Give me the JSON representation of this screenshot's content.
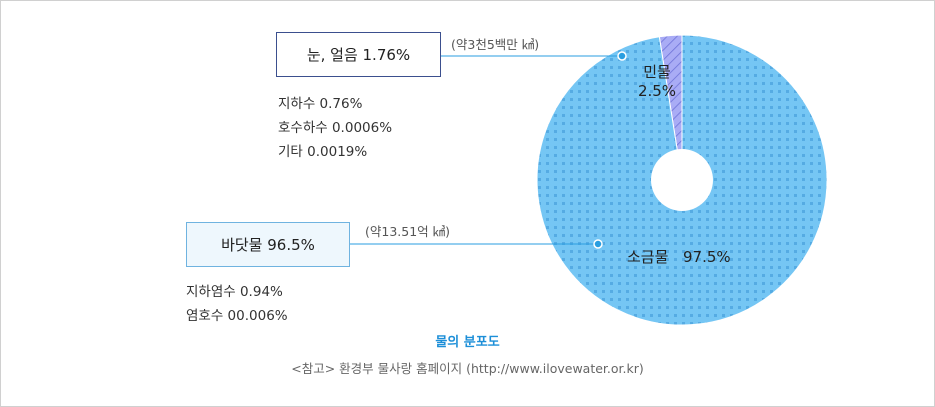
{
  "chart_data": {
    "type": "pie",
    "title": "물의 분포도",
    "source": "<참고> 환경부 물사랑 홈페이지 (http://www.ilovewater.or.kr)",
    "slices": [
      {
        "label": "민물",
        "value": 2.5,
        "value_label": "2.5%",
        "color": "#a9acf5",
        "pattern": "diagonal-hatch"
      },
      {
        "label": "소금물",
        "value": 97.5,
        "value_label": "97.5%",
        "color": "#75c6f4",
        "pattern": "dotted-grid"
      }
    ],
    "freshwater_breakdown": {
      "headline": "눈, 얼음 1.76%",
      "amount_note": "(약3천5백만 ㎦)",
      "items": [
        "지하수 0.76%",
        "호수하수 0.0006%",
        "기타 0.0019%"
      ]
    },
    "saltwater_breakdown": {
      "headline": "바닷물 96.5%",
      "amount_note": "(약13.51억 ㎦)",
      "items": [
        "지하염수 0.94%",
        "염호수 00.006%"
      ]
    }
  },
  "colors": {
    "fresh_fill": "#a9acf5",
    "fresh_line": "#6f73d9",
    "salt_fill": "#75c6f4",
    "salt_dot": "#55abe3",
    "leader_line": "#2a9ee0",
    "title_color": "#1d8fd8"
  }
}
